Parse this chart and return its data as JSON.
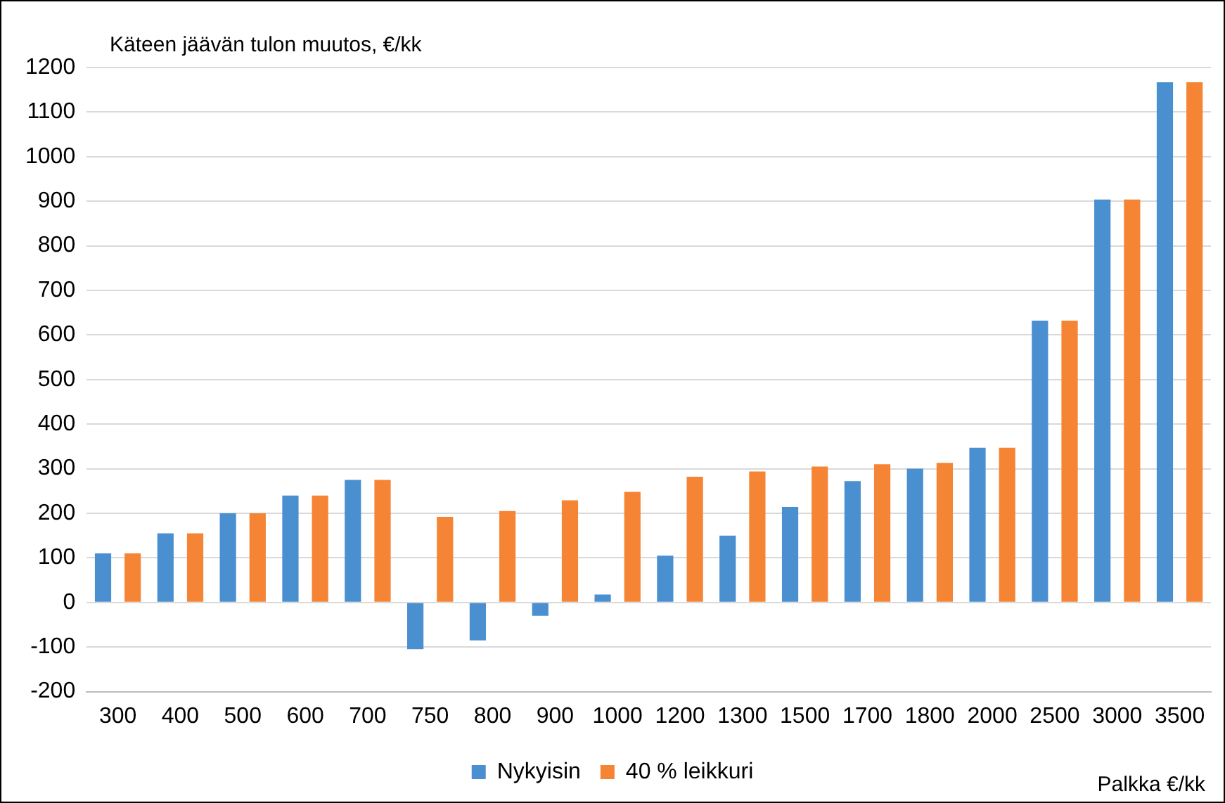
{
  "chart_data": {
    "type": "bar",
    "ylabel": "Käteen jäävän tulon muutos, €/kk",
    "xlabel": "Palkka €/kk",
    "categories": [
      "300",
      "400",
      "500",
      "600",
      "700",
      "750",
      "800",
      "900",
      "1000",
      "1200",
      "1300",
      "1500",
      "1700",
      "1800",
      "2000",
      "2500",
      "3000",
      "3500"
    ],
    "series": [
      {
        "name": "Nykyisin",
        "color": "#4a90d0",
        "values": [
          110,
          155,
          200,
          240,
          275,
          -105,
          -85,
          -30,
          18,
          105,
          150,
          214,
          272,
          300,
          347,
          632,
          904,
          1167
        ]
      },
      {
        "name": "40 % leikkuri",
        "color": "#f58535",
        "values": [
          110,
          155,
          200,
          240,
          275,
          192,
          205,
          229,
          248,
          282,
          294,
          305,
          310,
          313,
          347,
          632,
          904,
          1167
        ]
      }
    ],
    "ylim": [
      -200,
      1200
    ],
    "yticks": [
      -200,
      -100,
      0,
      100,
      200,
      300,
      400,
      500,
      600,
      700,
      800,
      900,
      1000,
      1100,
      1200
    ],
    "grid": "y",
    "legend": "bottom"
  }
}
